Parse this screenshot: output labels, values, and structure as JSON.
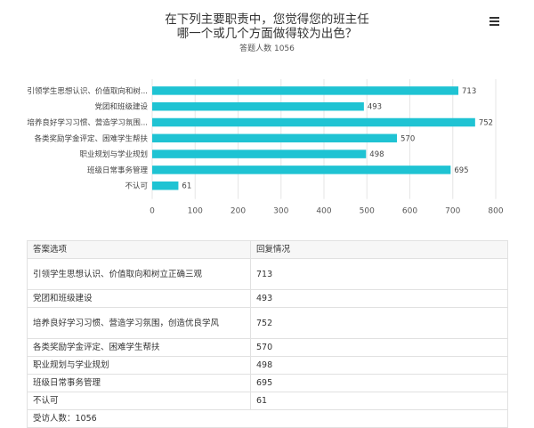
{
  "menu_icon": "hamburger-menu-icon",
  "chart_data": {
    "type": "bar",
    "orientation": "horizontal",
    "title": "在下列主要职责中，您觉得您的班主任\n哪一个或几个方面做得较为出色？",
    "subtitle": "答题人数 1056",
    "categories": [
      "引领学生思想认识、价值取向和树...",
      "党团和班级建设",
      "培养良好学习习惯、营造学习氛围...",
      "各类奖励学金评定、困难学生帮扶",
      "职业规划与学业规划",
      "班级日常事务管理",
      "不认可"
    ],
    "series": [
      {
        "values": [
          713,
          493,
          752,
          570,
          498,
          695,
          61
        ],
        "color": "#1fc3d3"
      }
    ],
    "xlim": [
      0,
      800
    ],
    "xticks": [
      "0",
      "100",
      "200",
      "300",
      "400",
      "500",
      "600",
      "700",
      "800"
    ],
    "grid": true
  },
  "table": {
    "headers": [
      "答案选项",
      "回复情况"
    ],
    "rows": [
      {
        "label": "引领学生思想认识、价值取向和树立正确三观",
        "value": "713"
      },
      {
        "label": "党团和班级建设",
        "value": "493"
      },
      {
        "label": "培养良好学习习惯、营造学习氛围，创造优良学风",
        "value": "752"
      },
      {
        "label": "各类奖励学金评定、困难学生帮扶",
        "value": "570"
      },
      {
        "label": "职业规划与学业规划",
        "value": "498"
      },
      {
        "label": "班级日常事务管理",
        "value": "695"
      },
      {
        "label": "不认可",
        "value": "61"
      }
    ],
    "footer": "受访人数：1056"
  }
}
